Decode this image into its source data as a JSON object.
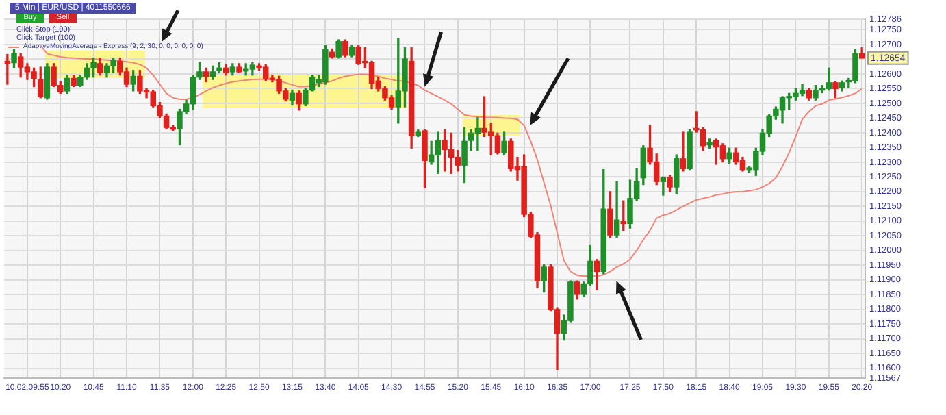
{
  "chart_data": {
    "type": "candlestick",
    "title": "5 Min | EUR/USD | 4011550666",
    "annotations": [
      "Buy",
      "Sell",
      "Click Stop  (100)",
      "Click Target  (100)",
      {
        "text": "1.12654",
        "y": 1.12654
      }
    ],
    "categories": [
      null,
      null,
      null,
      "10.02.09:55",
      null,
      null,
      null,
      null,
      "10:20",
      null,
      null,
      null,
      null,
      "10:45",
      null,
      null,
      null,
      null,
      "11:10",
      null,
      null,
      null,
      null,
      "11:35",
      null,
      null,
      null,
      null,
      "12:00",
      null,
      null,
      null,
      null,
      "12:25",
      null,
      null,
      null,
      null,
      "12:50",
      null,
      null,
      null,
      null,
      "13:15",
      null,
      null,
      null,
      null,
      "13:40",
      null,
      null,
      null,
      null,
      "14:05",
      null,
      null,
      null,
      null,
      "14:30",
      null,
      null,
      null,
      null,
      "14:55",
      null,
      null,
      null,
      null,
      "15:20",
      null,
      null,
      null,
      null,
      "15:45",
      null,
      null,
      null,
      null,
      "16:10",
      null,
      null,
      null,
      null,
      "16:35",
      null,
      null,
      null,
      null,
      "17:00",
      null,
      null,
      null,
      null,
      null,
      "17:25",
      null,
      null,
      null,
      null,
      "17:50",
      null,
      null,
      null,
      null,
      "18:15",
      null,
      null,
      null,
      null,
      "18:40",
      null,
      null,
      null,
      null,
      "19:05",
      null,
      null,
      null,
      null,
      "19:30",
      null,
      null,
      null,
      null,
      "19:55",
      null,
      null,
      null,
      null,
      "20:20"
    ],
    "ohlc": [
      [
        1.12643,
        1.12666,
        1.12565,
        1.12635
      ],
      [
        1.12638,
        1.12682,
        1.1262,
        1.12669
      ],
      [
        1.12658,
        1.12669,
        1.12589,
        1.12623
      ],
      [
        1.12623,
        1.12635,
        1.12581,
        1.12607
      ],
      [
        1.12607,
        1.1262,
        1.12557,
        1.12585
      ],
      [
        1.12581,
        1.12623,
        1.12519,
        1.12523
      ],
      [
        1.12519,
        1.12635,
        1.12514,
        1.12623
      ],
      [
        1.12623,
        1.12635,
        1.12557,
        1.12561
      ],
      [
        1.12561,
        1.12573,
        1.12534,
        1.12539
      ],
      [
        1.12542,
        1.12596,
        1.12534,
        1.12585
      ],
      [
        1.12585,
        1.12596,
        1.12557,
        1.12561
      ],
      [
        1.12561,
        1.12596,
        1.12557,
        1.12589
      ],
      [
        1.12589,
        1.12635,
        1.12581,
        1.1262
      ],
      [
        1.1262,
        1.12654,
        1.12589,
        1.12638
      ],
      [
        1.12635,
        1.12654,
        1.12596,
        1.12604
      ],
      [
        1.12604,
        1.12635,
        1.12589,
        1.12627
      ],
      [
        1.12627,
        1.12654,
        1.12604,
        1.12646
      ],
      [
        1.12643,
        1.12654,
        1.12596,
        1.12607
      ],
      [
        1.12607,
        1.1262,
        1.12557,
        1.12565
      ],
      [
        1.12565,
        1.12612,
        1.12542,
        1.12592
      ],
      [
        1.12592,
        1.12612,
        1.12534,
        1.12542
      ],
      [
        1.12542,
        1.1255,
        1.12519,
        1.12539
      ],
      [
        1.12539,
        1.12545,
        1.12488,
        1.12492
      ],
      [
        1.12492,
        1.12503,
        1.12452,
        1.12457
      ],
      [
        1.12457,
        1.12464,
        1.12413,
        1.12418
      ],
      [
        1.12418,
        1.12425,
        1.12408,
        1.12412
      ],
      [
        1.12415,
        1.1248,
        1.12359,
        1.12472
      ],
      [
        1.12472,
        1.12511,
        1.12464,
        1.12498
      ],
      [
        1.12498,
        1.12596,
        1.1248,
        1.12589
      ],
      [
        1.12589,
        1.12638,
        1.12581,
        1.12607
      ],
      [
        1.12607,
        1.1262,
        1.12573,
        1.12592
      ],
      [
        1.12592,
        1.12627,
        1.12581,
        1.12607
      ],
      [
        1.12612,
        1.12638,
        1.12604,
        1.1262
      ],
      [
        1.1262,
        1.12632,
        1.12596,
        1.12604
      ],
      [
        1.12607,
        1.12635,
        1.12596,
        1.12623
      ],
      [
        1.12623,
        1.12635,
        1.12604,
        1.12607
      ],
      [
        1.1261,
        1.12635,
        1.12596,
        1.12616
      ],
      [
        1.12616,
        1.12638,
        1.12596,
        1.1263
      ],
      [
        1.12627,
        1.12635,
        1.12612,
        1.1262
      ],
      [
        1.12623,
        1.12632,
        1.12576,
        1.12585
      ],
      [
        1.12585,
        1.12596,
        1.12573,
        1.12581
      ],
      [
        1.12581,
        1.12592,
        1.12534,
        1.12542
      ],
      [
        1.12542,
        1.1255,
        1.12508,
        1.12514
      ],
      [
        1.12511,
        1.12545,
        1.12495,
        1.12534
      ],
      [
        1.12534,
        1.12542,
        1.12477,
        1.12498
      ],
      [
        1.12498,
        1.1255,
        1.12492,
        1.12545
      ],
      [
        1.12545,
        1.12596,
        1.12542,
        1.12589
      ],
      [
        1.1257,
        1.12596,
        1.12557,
        1.12581
      ],
      [
        1.12573,
        1.12697,
        1.12565,
        1.12682
      ],
      [
        1.12674,
        1.12685,
        1.12654,
        1.12658
      ],
      [
        1.12658,
        1.12716,
        1.12654,
        1.1271
      ],
      [
        1.1271,
        1.12716,
        1.12658,
        1.12663
      ],
      [
        1.12663,
        1.12697,
        1.12658,
        1.12691
      ],
      [
        1.12691,
        1.12697,
        1.12632,
        1.12635
      ],
      [
        1.12643,
        1.12689,
        1.1262,
        1.12638
      ],
      [
        1.12638,
        1.12643,
        1.1255,
        1.12568
      ],
      [
        1.12576,
        1.12589,
        1.12542,
        1.1255
      ],
      [
        1.1255,
        1.12557,
        1.12511,
        1.12519
      ],
      [
        1.12519,
        1.12526,
        1.1248,
        1.12488
      ],
      [
        1.12488,
        1.1272,
        1.12433,
        1.12542
      ],
      [
        1.12542,
        1.12689,
        1.12488,
        1.12651
      ],
      [
        1.12643,
        1.12689,
        1.12348,
        1.1239
      ],
      [
        1.1239,
        1.1241,
        1.12387,
        1.12402
      ],
      [
        1.12407,
        1.1241,
        1.12213,
        1.12306
      ],
      [
        1.12301,
        1.12371,
        1.12293,
        1.12325
      ],
      [
        1.12325,
        1.12402,
        1.12262,
        1.12374
      ],
      [
        1.12374,
        1.1241,
        1.1227,
        1.12343
      ],
      [
        1.12343,
        1.12399,
        1.12262,
        1.12317
      ],
      [
        1.12317,
        1.1234,
        1.1227,
        1.1229
      ],
      [
        1.1229,
        1.12418,
        1.12231,
        1.12371
      ],
      [
        1.12374,
        1.1241,
        1.1234,
        1.12399
      ],
      [
        1.12399,
        1.12452,
        1.1234,
        1.12415
      ],
      [
        1.12415,
        1.12523,
        1.12387,
        1.12402
      ],
      [
        1.12402,
        1.12433,
        1.12325,
        1.1239
      ],
      [
        1.1239,
        1.12399,
        1.12328,
        1.12332
      ],
      [
        1.12332,
        1.12402,
        1.12325,
        1.12371
      ],
      [
        1.12371,
        1.12379,
        1.1227,
        1.12278
      ],
      [
        1.12286,
        1.12317,
        1.12239,
        1.12275
      ],
      [
        1.12286,
        1.12325,
        1.12115,
        1.12123
      ],
      [
        1.12123,
        1.1213,
        1.12045,
        1.12048
      ],
      [
        1.12053,
        1.12061,
        1.11874,
        1.11897
      ],
      [
        1.11897,
        1.11952,
        1.11859,
        1.11944
      ],
      [
        1.11944,
        1.11952,
        1.11796,
        1.118
      ],
      [
        1.118,
        1.11804,
        1.11595,
        1.11719
      ],
      [
        1.11719,
        1.11781,
        1.11696,
        1.11762
      ],
      [
        1.11762,
        1.11897,
        1.11758,
        1.11893
      ],
      [
        1.11893,
        1.11897,
        1.11835,
        1.11851
      ],
      [
        1.11851,
        1.11893,
        1.11843,
        1.11887
      ],
      [
        1.11887,
        1.12017,
        1.11882,
        1.11964
      ],
      [
        1.11964,
        1.1197,
        1.11866,
        1.11929
      ],
      [
        1.11929,
        1.12275,
        1.11921,
        1.12141
      ],
      [
        1.12141,
        1.122,
        1.12045,
        1.12053
      ],
      [
        1.12053,
        1.12234,
        1.12045,
        1.12104
      ],
      [
        1.12099,
        1.12169,
        1.12068,
        1.12092
      ],
      [
        1.12092,
        1.12239,
        1.12076,
        1.12177
      ],
      [
        1.12177,
        1.12278,
        1.12169,
        1.12234
      ],
      [
        1.12247,
        1.12356,
        1.12224,
        1.12348
      ],
      [
        1.12348,
        1.12425,
        1.12293,
        1.12301
      ],
      [
        1.12301,
        1.12328,
        1.12224,
        1.12234
      ],
      [
        1.12234,
        1.1225,
        1.12188,
        1.12247
      ],
      [
        1.12247,
        1.12255,
        1.122,
        1.12216
      ],
      [
        1.12216,
        1.12325,
        1.12192,
        1.12312
      ],
      [
        1.12312,
        1.12402,
        1.1227,
        1.12278
      ],
      [
        1.12278,
        1.1241,
        1.12275,
        1.12402
      ],
      [
        1.12415,
        1.12472,
        1.12402,
        1.1241
      ],
      [
        1.1241,
        1.12418,
        1.1234,
        1.12356
      ],
      [
        1.12359,
        1.12379,
        1.12348,
        1.12368
      ],
      [
        1.12374,
        1.12379,
        1.12293,
        1.12352
      ],
      [
        1.12356,
        1.12363,
        1.12301,
        1.12312
      ],
      [
        1.12312,
        1.12348,
        1.12297,
        1.12332
      ],
      [
        1.12332,
        1.12348,
        1.12293,
        1.12301
      ],
      [
        1.12306,
        1.12317,
        1.1227,
        1.12275
      ],
      [
        1.12275,
        1.12286,
        1.12266,
        1.12281
      ],
      [
        1.12275,
        1.12348,
        1.12255,
        1.12337
      ],
      [
        1.12337,
        1.1241,
        1.12325,
        1.12399
      ],
      [
        1.12399,
        1.12461,
        1.12387,
        1.12457
      ],
      [
        1.12457,
        1.12488,
        1.12446,
        1.1248
      ],
      [
        1.12477,
        1.12523,
        1.12433,
        1.12519
      ],
      [
        1.12519,
        1.12534,
        1.1248,
        1.12523
      ],
      [
        1.12523,
        1.1255,
        1.12511,
        1.12534
      ],
      [
        1.12534,
        1.12565,
        1.12526,
        1.12545
      ],
      [
        1.12545,
        1.1255,
        1.12511,
        1.12519
      ],
      [
        1.12519,
        1.12561,
        1.12511,
        1.12545
      ],
      [
        1.12545,
        1.12561,
        1.12536,
        1.1255
      ],
      [
        1.1255,
        1.1262,
        1.12545,
        1.1257
      ],
      [
        1.1257,
        1.12573,
        1.12519,
        1.1255
      ],
      [
        1.12554,
        1.12576,
        1.12542,
        1.1257
      ],
      [
        1.12573,
        1.12585,
        1.12554,
        1.12576
      ],
      [
        1.12576,
        1.12682,
        1.1257,
        1.12669
      ],
      [
        1.12669,
        1.12689,
        1.12654,
        1.12654
      ]
    ],
    "colors": [
      "#e0201c",
      "#1f8f2a",
      "#e0201c",
      "#e0201c",
      "#e0201c",
      "#e0201c",
      "#1f8f2a",
      "#e0201c",
      "#e0201c",
      "#1f8f2a",
      "#e0201c",
      "#1f8f2a",
      "#1f8f2a",
      "#1f8f2a",
      "#e0201c",
      "#1f8f2a",
      "#1f8f2a",
      "#e0201c",
      "#e0201c",
      "#1f8f2a",
      "#e0201c",
      "#e0201c",
      "#e0201c",
      "#e0201c",
      "#e0201c",
      "#e0201c",
      "#1f8f2a",
      "#1f8f2a",
      "#1f8f2a",
      "#1f8f2a",
      "#e0201c",
      "#1f8f2a",
      "#1f8f2a",
      "#e0201c",
      "#1f8f2a",
      "#e0201c",
      "#1f8f2a",
      "#1f8f2a",
      "#e0201c",
      "#e0201c",
      "#e0201c",
      "#e0201c",
      "#e0201c",
      "#1f8f2a",
      "#e0201c",
      "#1f8f2a",
      "#1f8f2a",
      "#1f8f2a",
      "#1f8f2a",
      "#e0201c",
      "#1f8f2a",
      "#e0201c",
      "#1f8f2a",
      "#e0201c",
      "#e0201c",
      "#e0201c",
      "#e0201c",
      "#e0201c",
      "#e0201c",
      "#1f8f2a",
      "#1f8f2a",
      "#e0201c",
      "#1f8f2a",
      "#e0201c",
      "#1f8f2a",
      "#1f8f2a",
      "#e0201c",
      "#e0201c",
      "#e0201c",
      "#1f8f2a",
      "#1f8f2a",
      "#1f8f2a",
      "#e0201c",
      "#e0201c",
      "#e0201c",
      "#1f8f2a",
      "#e0201c",
      "#e0201c",
      "#e0201c",
      "#e0201c",
      "#e0201c",
      "#1f8f2a",
      "#e0201c",
      "#e0201c",
      "#1f8f2a",
      "#1f8f2a",
      "#e0201c",
      "#1f8f2a",
      "#1f8f2a",
      "#e0201c",
      "#1f8f2a",
      "#e0201c",
      "#1f8f2a",
      "#e0201c",
      "#1f8f2a",
      "#1f8f2a",
      "#1f8f2a",
      "#e0201c",
      "#e0201c",
      "#1f8f2a",
      "#e0201c",
      "#1f8f2a",
      "#e0201c",
      "#1f8f2a",
      "#e0201c",
      "#e0201c",
      "#1f8f2a",
      "#e0201c",
      "#e0201c",
      "#1f8f2a",
      "#e0201c",
      "#e0201c",
      "#1f8f2a",
      "#1f8f2a",
      "#1f8f2a",
      "#1f8f2a",
      "#1f8f2a",
      "#1f8f2a",
      "#1f8f2a",
      "#1f8f2a",
      "#1f8f2a",
      "#e0201c",
      "#1f8f2a",
      "#1f8f2a",
      "#1f8f2a",
      "#e0201c",
      "#1f8f2a",
      "#1f8f2a",
      "#1f8f2a",
      "#e0201c"
    ],
    "series": [
      {
        "type": "line",
        "name": "AdaptiveMovingAverage - Express  (9, 2, 30, 0, 0, 0, 0, 0, 0)",
        "color": "#f08478",
        "values": [
          null,
          null,
          null,
          null,
          null,
          1.12697,
          1.12669,
          1.12663,
          1.12658,
          1.12655,
          1.12654,
          1.12652,
          1.12651,
          1.12651,
          1.12649,
          1.12647,
          1.12646,
          1.12644,
          1.12641,
          1.12638,
          1.12632,
          1.1262,
          1.12596,
          1.12565,
          1.12534,
          1.12519,
          1.12514,
          1.12514,
          1.12519,
          1.1253,
          1.12542,
          1.12553,
          1.12561,
          1.12568,
          1.12573,
          1.12576,
          1.12579,
          1.12581,
          1.12582,
          1.12582,
          1.12581,
          1.12576,
          1.1257,
          1.12563,
          1.12557,
          1.12557,
          1.12561,
          1.12565,
          1.1257,
          1.12576,
          1.12585,
          1.12592,
          1.12596,
          1.12599,
          1.12599,
          1.12596,
          1.12592,
          1.12585,
          1.12581,
          1.12576,
          1.12576,
          1.12568,
          1.12561,
          1.12545,
          1.12534,
          1.12523,
          1.12511,
          1.12498,
          1.1248,
          1.12461,
          1.12457,
          1.12455,
          1.12453,
          1.12452,
          1.12452,
          1.1245,
          1.12449,
          1.12446,
          1.12425,
          1.12371,
          1.12309,
          1.12231,
          1.12154,
          1.12061,
          1.11967,
          1.11929,
          1.11916,
          1.11913,
          1.11913,
          1.11913,
          1.11918,
          1.11929,
          1.11944,
          1.11955,
          1.1197,
          1.12001,
          1.12037,
          1.12068,
          1.1211,
          1.1212,
          1.12126,
          1.12138,
          1.1215,
          1.12161,
          1.12172,
          1.12177,
          1.12182,
          1.12189,
          1.12192,
          1.12197,
          1.122,
          1.122,
          1.12203,
          1.12207,
          1.12216,
          1.12228,
          1.12247,
          1.12286,
          1.12332,
          1.12387,
          1.12446,
          1.12472,
          1.12492,
          1.12498,
          1.12511,
          1.12515,
          1.1252,
          1.12526,
          1.12534,
          1.1255
        ]
      }
    ],
    "ylim": [
      1.11567,
      1.12786
    ],
    "yticks": [
      {
        "value": 1.11567,
        "label": "1.11567"
      },
      {
        "value": 1.116,
        "label": "1.11600"
      },
      {
        "value": 1.1165,
        "label": "1.11650"
      },
      {
        "value": 1.117,
        "label": "1.11700"
      },
      {
        "value": 1.1175,
        "label": "1.11750"
      },
      {
        "value": 1.118,
        "label": "1.11800"
      },
      {
        "value": 1.1185,
        "label": "1.11850"
      },
      {
        "value": 1.119,
        "label": "1.11900"
      },
      {
        "value": 1.1195,
        "label": "1.11950"
      },
      {
        "value": 1.12,
        "label": "1.12000"
      },
      {
        "value": 1.1205,
        "label": "1.12050"
      },
      {
        "value": 1.121,
        "label": "1.12100"
      },
      {
        "value": 1.1215,
        "label": "1.12150"
      },
      {
        "value": 1.122,
        "label": "1.12200"
      },
      {
        "value": 1.1225,
        "label": "1.12250"
      },
      {
        "value": 1.123,
        "label": "1.12300"
      },
      {
        "value": 1.1235,
        "label": "1.12350"
      },
      {
        "value": 1.124,
        "label": "1.12400"
      },
      {
        "value": 1.1245,
        "label": "1.12450"
      },
      {
        "value": 1.125,
        "label": "1.12500"
      },
      {
        "value": 1.1255,
        "label": "1.12550"
      },
      {
        "value": 1.126,
        "label": "1.12600"
      },
      {
        "value": 1.1265,
        "label": null
      },
      {
        "value": 1.127,
        "label": "1.12700"
      },
      {
        "value": 1.1275,
        "label": "1.12750"
      },
      {
        "value": 1.12786,
        "label": "1.12786"
      }
    ],
    "grid": true,
    "legend": "top left",
    "marker": "none"
  }
}
